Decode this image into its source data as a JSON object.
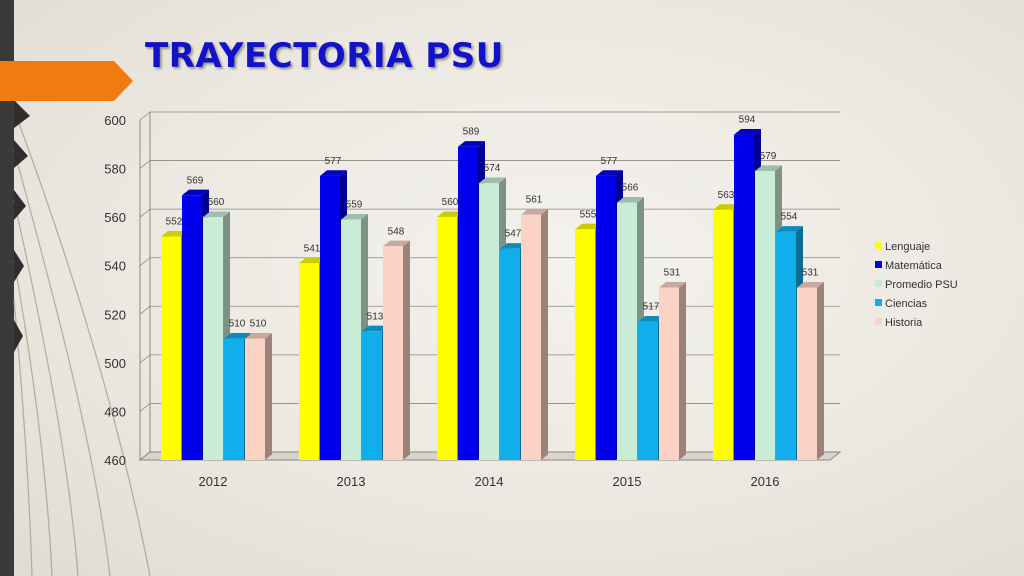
{
  "slide": {
    "title": "TRAYECTORIA PSU"
  },
  "chart_data": {
    "type": "bar",
    "title": "",
    "xlabel": "",
    "ylabel": "",
    "ylim": [
      460,
      600
    ],
    "yticks": [
      460,
      480,
      500,
      520,
      540,
      560,
      580,
      600
    ],
    "grid": true,
    "legend_position": "right",
    "categories": [
      "2012",
      "2013",
      "2014",
      "2015",
      "2016"
    ],
    "series": [
      {
        "name": "Lenguaje",
        "color": "#ffff00",
        "values": [
          552,
          541,
          560,
          555,
          563
        ]
      },
      {
        "name": "Matemática",
        "color": "#0000ee",
        "values": [
          569,
          577,
          589,
          577,
          594
        ]
      },
      {
        "name": "Promedio PSU",
        "color": "#c8ecd6",
        "values": [
          560,
          559,
          574,
          566,
          579
        ]
      },
      {
        "name": "Ciencias",
        "color": "#10aeea",
        "values": [
          510,
          513,
          547,
          517,
          554
        ]
      },
      {
        "name": "Historia",
        "color": "#fbd3c4",
        "values": [
          510,
          548,
          561,
          531,
          531
        ]
      }
    ]
  }
}
